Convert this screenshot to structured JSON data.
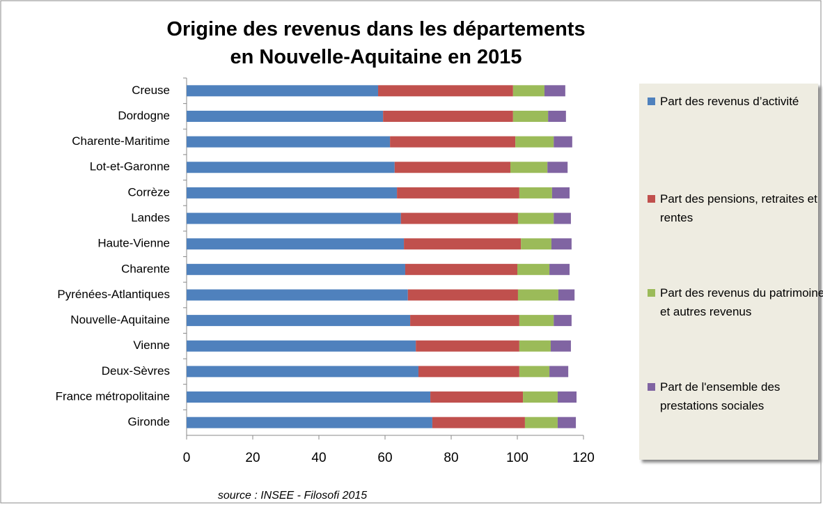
{
  "chart_data": {
    "type": "stacked-bar-horizontal",
    "title": "Origine des revenus dans les départements en Nouvelle-Aquitaine en 2015",
    "source": "source : INSEE - Filosofi 2015",
    "categories": [
      "Creuse",
      "Dordogne",
      "Charente-Maritime",
      "Lot-et-Garonne",
      "Corrèze",
      "Landes",
      "Haute-Vienne",
      "Charente",
      "Pyrénées-Atlantiques",
      "Nouvelle-Aquitaine",
      "Vienne",
      "Deux-Sèvres",
      "France métropolitaine",
      "Gironde"
    ],
    "series": [
      {
        "name": "Part des revenus d’activité",
        "color": "#4f81bd",
        "values": [
          57.9,
          59.4,
          61.5,
          62.9,
          63.6,
          64.8,
          65.7,
          66.1,
          66.9,
          67.6,
          69.3,
          70.1,
          73.7,
          74.3
        ]
      },
      {
        "name": "Part des pensions, retraites et rentes",
        "color": "#c0504d",
        "values": [
          40.8,
          39.3,
          37.9,
          35.0,
          37.0,
          35.4,
          35.4,
          33.9,
          33.3,
          33.0,
          31.3,
          30.5,
          28.0,
          28.0
        ]
      },
      {
        "name": "Part des revenus du patrimoine et autres revenus",
        "color": "#9bbb59",
        "values": [
          9.5,
          10.6,
          11.6,
          11.2,
          9.9,
          10.8,
          9.2,
          9.7,
          12.2,
          10.4,
          9.5,
          9.1,
          10.5,
          9.9
        ]
      },
      {
        "name": "Part de l'ensemble des prestations sociales",
        "color": "#8064a2",
        "values": [
          6.3,
          5.4,
          5.6,
          6.1,
          5.3,
          5.2,
          6.1,
          6.1,
          4.9,
          5.4,
          6.1,
          5.7,
          5.7,
          5.5
        ]
      }
    ],
    "xlim": [
      0,
      120
    ],
    "xticks": [
      0,
      20,
      40,
      60,
      80,
      100,
      120
    ],
    "legend": "right"
  }
}
